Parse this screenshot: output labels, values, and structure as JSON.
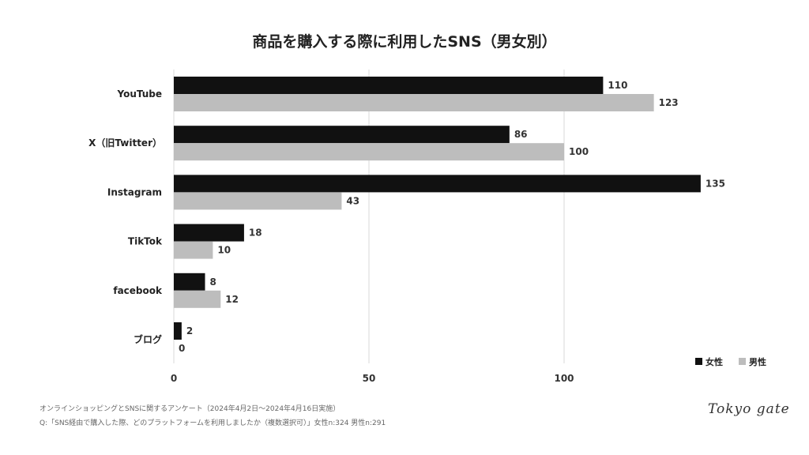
{
  "chart_data": {
    "type": "bar",
    "orientation": "horizontal",
    "title": "商品を購入する際に利用したSNS（男女別）",
    "categories": [
      "YouTube",
      "X（旧Twitter）",
      "Instagram",
      "TikTok",
      "facebook",
      "ブログ"
    ],
    "series": [
      {
        "name": "女性",
        "values": [
          110,
          86,
          135,
          18,
          8,
          2
        ],
        "color": "#111111"
      },
      {
        "name": "男性",
        "values": [
          123,
          100,
          43,
          10,
          12,
          0
        ],
        "color": "#bdbdbd"
      }
    ],
    "xlim": [
      0,
      150
    ],
    "xticks": [
      0,
      50,
      100
    ],
    "grid": true,
    "legend": "bottom-right",
    "data_labels": true
  },
  "footer": {
    "source": "オンラインショッピングとSNSに関するアンケート（2024年4月2日〜2024年4月16日実施）",
    "question": "Q:「SNS経由で購入した際、どのプラットフォームを利用しましたか（複数選択可）」女性n:324 男性n:291"
  },
  "logo": "Tokyo gate"
}
